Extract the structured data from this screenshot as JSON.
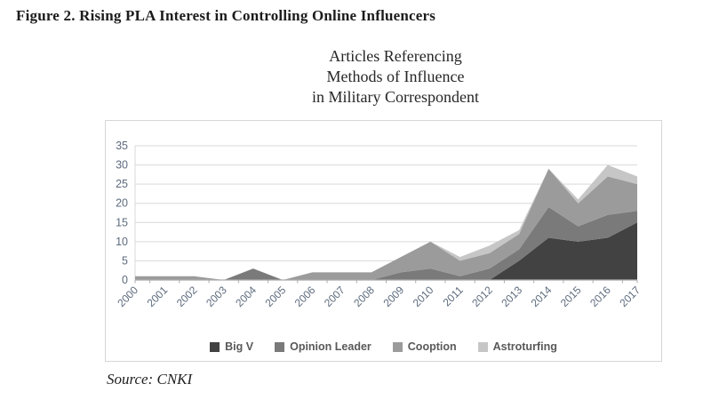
{
  "figure_title": "Figure 2. Rising PLA Interest in Controlling Online Influencers",
  "source_note": "Source: CNKI",
  "chart_data": {
    "type": "area",
    "stacked": true,
    "title_lines": [
      "Articles Referencing",
      "Methods of Influence",
      "in Military Correspondent"
    ],
    "categories": [
      "2000",
      "2001",
      "2002",
      "2003",
      "2004",
      "2005",
      "2006",
      "2007",
      "2008",
      "2009",
      "2010",
      "2011",
      "2012",
      "2013",
      "2014",
      "2015",
      "2016",
      "2017"
    ],
    "series": [
      {
        "name": "Big V",
        "color": "#424242",
        "values": [
          0,
          0,
          0,
          0,
          0,
          0,
          0,
          0,
          0,
          0,
          0,
          0,
          0,
          5,
          11,
          10,
          11,
          15
        ]
      },
      {
        "name": "Opinion Leader",
        "color": "#7a7a7a",
        "values": [
          0,
          0,
          0,
          0,
          3,
          0,
          0,
          0,
          0,
          2,
          3,
          1,
          3,
          3,
          8,
          4,
          6,
          3
        ]
      },
      {
        "name": "Cooption",
        "color": "#9b9b9b",
        "values": [
          1,
          1,
          1,
          0,
          0,
          0,
          2,
          2,
          2,
          4,
          7,
          4,
          4,
          4,
          10,
          6,
          10,
          7
        ]
      },
      {
        "name": "Astroturfing",
        "color": "#c6c6c6",
        "values": [
          0,
          0,
          0,
          0,
          0,
          0,
          0,
          0,
          0,
          0,
          0,
          1,
          2,
          1,
          0,
          1,
          3,
          2
        ]
      }
    ],
    "ylim": [
      0,
      35
    ],
    "ytick_step": 5,
    "grid": true,
    "legend_position": "bottom",
    "grid_color": "#d9d9d9",
    "axis_color": "#ababab",
    "tick_label_color": "#5d6b7d"
  }
}
